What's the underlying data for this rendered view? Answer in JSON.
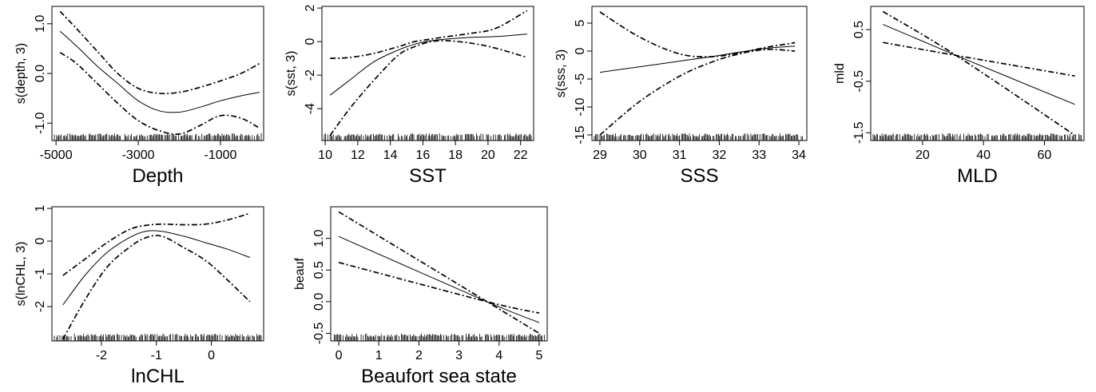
{
  "chart_data": [
    {
      "type": "line",
      "xlabel": "Depth",
      "ylabel": "s(depth, 3)",
      "xlim": [
        -5100,
        50
      ],
      "ylim": [
        -1.35,
        1.35
      ],
      "xticks": [
        -5000,
        -3000,
        -1000
      ],
      "xtick_labels": [
        "-5000",
        "-3000",
        "-1000"
      ],
      "yticks": [
        -1.0,
        0.0,
        1.0
      ],
      "ytick_labels": [
        "-1.0",
        "0.0",
        "1.0"
      ],
      "x": [
        -4900,
        -4500,
        -4000,
        -3500,
        -3000,
        -2500,
        -2000,
        -1500,
        -1000,
        -500,
        -50
      ],
      "series": [
        {
          "role": "fit",
          "values": [
            0.85,
            0.55,
            0.15,
            -0.2,
            -0.55,
            -0.75,
            -0.78,
            -0.68,
            -0.55,
            -0.45,
            -0.38
          ]
        },
        {
          "role": "upper",
          "values": [
            1.25,
            0.9,
            0.45,
            0.0,
            -0.3,
            -0.4,
            -0.38,
            -0.28,
            -0.15,
            0.0,
            0.2
          ]
        },
        {
          "role": "lower",
          "values": [
            0.42,
            0.2,
            -0.2,
            -0.6,
            -0.95,
            -1.15,
            -1.22,
            -1.05,
            -0.85,
            -0.9,
            -1.1
          ]
        }
      ],
      "grid": false,
      "rug": true
    },
    {
      "type": "line",
      "xlabel": "SST",
      "ylabel": "s(sst, 3)",
      "xlim": [
        9.8,
        22.8
      ],
      "ylim": [
        -5.9,
        2.1
      ],
      "xticks": [
        10,
        12,
        14,
        16,
        18,
        20,
        22
      ],
      "xtick_labels": [
        "10",
        "12",
        "14",
        "16",
        "18",
        "20",
        "22"
      ],
      "yticks": [
        -4,
        -2,
        0,
        2
      ],
      "ytick_labels": [
        "-4",
        "-2",
        "0",
        "2"
      ],
      "x": [
        10.3,
        11.5,
        13,
        14.5,
        15.5,
        16.5,
        17.5,
        19,
        20.5,
        22.4
      ],
      "series": [
        {
          "role": "fit",
          "values": [
            -3.2,
            -2.3,
            -1.2,
            -0.5,
            -0.15,
            0.05,
            0.15,
            0.25,
            0.3,
            0.45
          ]
        },
        {
          "role": "upper",
          "values": [
            -1.0,
            -0.95,
            -0.7,
            -0.3,
            0.0,
            0.15,
            0.3,
            0.5,
            0.8,
            1.85
          ]
        },
        {
          "role": "lower",
          "values": [
            -5.6,
            -4.0,
            -2.3,
            -0.8,
            -0.3,
            0.0,
            0.05,
            -0.1,
            -0.4,
            -0.95
          ]
        }
      ],
      "grid": false,
      "rug": true
    },
    {
      "type": "line",
      "xlabel": "SSS",
      "ylabel": "s(sss, 3)",
      "xlim": [
        28.8,
        34.2
      ],
      "ylim": [
        -16,
        8
      ],
      "xticks": [
        29,
        30,
        31,
        32,
        33,
        34
      ],
      "xtick_labels": [
        "29",
        "30",
        "31",
        "32",
        "33",
        "34"
      ],
      "yticks": [
        -15,
        -10,
        -5,
        0,
        5
      ],
      "ytick_labels": [
        "-15",
        "-10",
        "-5",
        "0",
        "5"
      ],
      "x": [
        29,
        30,
        31,
        31.8,
        32.5,
        33.2,
        33.9
      ],
      "series": [
        {
          "role": "fit",
          "values": [
            -3.8,
            -2.8,
            -1.8,
            -1.0,
            -0.2,
            0.5,
            0.9
          ]
        },
        {
          "role": "upper",
          "values": [
            7.0,
            2.5,
            -0.5,
            -1.0,
            -0.3,
            0.7,
            1.5
          ]
        },
        {
          "role": "lower",
          "values": [
            -15.0,
            -9.0,
            -4.5,
            -2.0,
            -0.5,
            0.3,
            0.0
          ]
        }
      ],
      "grid": false,
      "rug": true
    },
    {
      "type": "line",
      "xlabel": "MLD",
      "ylabel": "mld",
      "xlim": [
        3,
        73
      ],
      "ylim": [
        -1.65,
        0.95
      ],
      "xticks": [
        20,
        40,
        60
      ],
      "xtick_labels": [
        "20",
        "40",
        "60"
      ],
      "yticks": [
        -1.5,
        -0.5,
        0.5
      ],
      "ytick_labels": [
        "-1.5",
        "-0.5",
        "0.5"
      ],
      "x": [
        7,
        31,
        70
      ],
      "series": [
        {
          "role": "fit",
          "values": [
            0.6,
            0.0,
            -0.95
          ]
        },
        {
          "role": "upper",
          "values": [
            0.25,
            0.0,
            -0.4
          ]
        },
        {
          "role": "lower",
          "values": [
            0.85,
            0.0,
            -1.55
          ]
        }
      ],
      "grid": false,
      "rug": true
    },
    {
      "type": "line",
      "xlabel": "lnCHL",
      "ylabel": "s(lnCHL, 3)",
      "xlim": [
        -2.9,
        0.95
      ],
      "ylim": [
        -3.05,
        1.05
      ],
      "xticks": [
        -2,
        -1,
        0
      ],
      "xtick_labels": [
        "-2",
        "-1",
        "0"
      ],
      "yticks": [
        -2,
        -1,
        0,
        1
      ],
      "ytick_labels": [
        "-2",
        "-1",
        "0",
        "1"
      ],
      "x": [
        -2.7,
        -2.3,
        -1.9,
        -1.5,
        -1.2,
        -0.9,
        -0.5,
        -0.1,
        0.3,
        0.7
      ],
      "series": [
        {
          "role": "fit",
          "values": [
            -1.95,
            -1.05,
            -0.35,
            0.1,
            0.3,
            0.3,
            0.15,
            -0.05,
            -0.25,
            -0.5
          ]
        },
        {
          "role": "upper",
          "values": [
            -1.05,
            -0.55,
            -0.05,
            0.35,
            0.48,
            0.52,
            0.5,
            0.52,
            0.65,
            0.85
          ]
        },
        {
          "role": "lower",
          "values": [
            -3.0,
            -1.8,
            -0.8,
            -0.2,
            0.1,
            0.15,
            -0.2,
            -0.6,
            -1.2,
            -1.85
          ]
        }
      ],
      "grid": false,
      "rug": true
    },
    {
      "type": "line",
      "xlabel": "Beaufort sea state",
      "ylabel": "beauf",
      "xlim": [
        -0.2,
        5.2
      ],
      "ylim": [
        -0.62,
        1.5
      ],
      "xticks": [
        0,
        1,
        2,
        3,
        4,
        5
      ],
      "xtick_labels": [
        "0",
        "1",
        "2",
        "3",
        "4",
        "5"
      ],
      "yticks": [
        -0.5,
        0.0,
        0.5,
        1.0
      ],
      "ytick_labels": [
        "-0.5",
        "0.0",
        "0.5",
        "1.0"
      ],
      "x": [
        0,
        3.7,
        5
      ],
      "series": [
        {
          "role": "fit",
          "values": [
            1.03,
            0.0,
            -0.33
          ]
        },
        {
          "role": "upper",
          "values": [
            1.42,
            0.0,
            -0.5
          ]
        },
        {
          "role": "lower",
          "values": [
            0.62,
            0.0,
            -0.18
          ]
        }
      ],
      "grid": false,
      "rug": true
    }
  ]
}
